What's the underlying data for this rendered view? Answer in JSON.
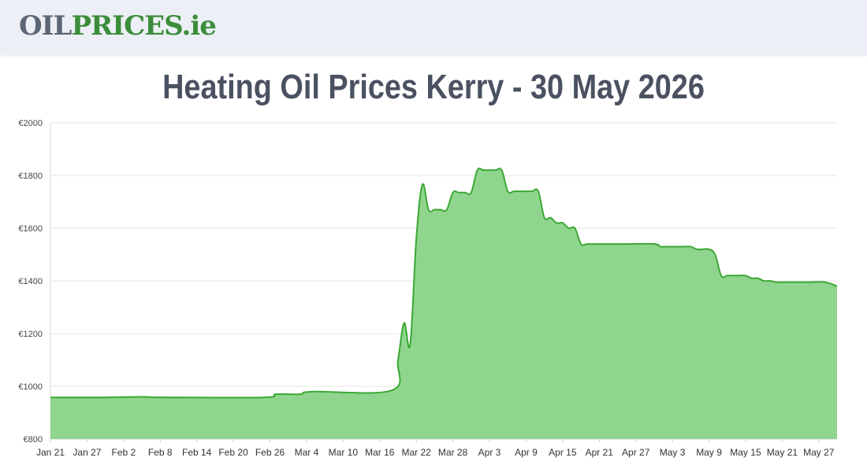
{
  "header": {
    "logo_oil": "OIL",
    "logo_prices": "PRICES",
    "logo_ie": ".ie",
    "bg_color": "#eceff5"
  },
  "page": {
    "title": "Heating Oil Prices Kerry - 30 May 2026"
  },
  "chart_data": {
    "type": "area",
    "title": "Heating Oil Prices Kerry - 30 May 2026",
    "xlabel": "",
    "ylabel": "",
    "ylim": [
      800,
      2000
    ],
    "yticks": [
      800,
      1000,
      1200,
      1400,
      1600,
      1800,
      2000
    ],
    "ytick_labels": [
      "€800",
      "€1000",
      "€1200",
      "€1400",
      "€1600",
      "€1800",
      "€2000"
    ],
    "xticks": [
      "Jan 21",
      "Jan 27",
      "Feb 2",
      "Feb 8",
      "Feb 14",
      "Feb 20",
      "Feb 26",
      "Mar 4",
      "Mar 10",
      "Mar 16",
      "Mar 22",
      "Mar 28",
      "Apr 3",
      "Apr 9",
      "Apr 15",
      "Apr 21",
      "Apr 27",
      "May 3",
      "May 9",
      "May 15",
      "May 21",
      "May 27"
    ],
    "grid": true,
    "legend": "none",
    "line_color": "#3aa835",
    "fill_color": "#90d58e",
    "series": [
      {
        "x": [
          "2026-01-21",
          "2026-01-30",
          "2026-02-05",
          "2026-02-09",
          "2026-02-25",
          "2026-02-27",
          "2026-03-03",
          "2026-03-05",
          "2026-03-18",
          "2026-03-19",
          "2026-03-20",
          "2026-03-21",
          "2026-03-22",
          "2026-03-23",
          "2026-03-24",
          "2026-03-25",
          "2026-03-26",
          "2026-03-27",
          "2026-03-28",
          "2026-03-29",
          "2026-03-30",
          "2026-03-31",
          "2026-04-01",
          "2026-04-02",
          "2026-04-03",
          "2026-04-04",
          "2026-04-05",
          "2026-04-06",
          "2026-04-07",
          "2026-04-08",
          "2026-04-09",
          "2026-04-10",
          "2026-04-11",
          "2026-04-12",
          "2026-04-13",
          "2026-04-14",
          "2026-04-15",
          "2026-04-16",
          "2026-04-17",
          "2026-04-18",
          "2026-04-19",
          "2026-04-20",
          "2026-04-21",
          "2026-04-22",
          "2026-04-25",
          "2026-04-30",
          "2026-05-01",
          "2026-05-02",
          "2026-05-05",
          "2026-05-06",
          "2026-05-07",
          "2026-05-08",
          "2026-05-09",
          "2026-05-10",
          "2026-05-11",
          "2026-05-12",
          "2026-05-13",
          "2026-05-14",
          "2026-05-15",
          "2026-05-16",
          "2026-05-17",
          "2026-05-18",
          "2026-05-19",
          "2026-05-20",
          "2026-05-21",
          "2026-05-22",
          "2026-05-25",
          "2026-05-28",
          "2026-05-30"
        ],
        "y": [
          958,
          958,
          960,
          958,
          958,
          970,
          970,
          980,
          985,
          1100,
          1240,
          1160,
          1560,
          1765,
          1670,
          1670,
          1670,
          1670,
          1735,
          1735,
          1735,
          1735,
          1820,
          1820,
          1820,
          1820,
          1820,
          1740,
          1740,
          1740,
          1740,
          1740,
          1740,
          1640,
          1640,
          1620,
          1620,
          1600,
          1600,
          1540,
          1540,
          1540,
          1540,
          1540,
          1540,
          1540,
          1530,
          1530,
          1530,
          1530,
          1520,
          1520,
          1520,
          1500,
          1420,
          1420,
          1420,
          1420,
          1420,
          1410,
          1410,
          1400,
          1400,
          1395,
          1395,
          1395,
          1395,
          1395,
          1380
        ]
      }
    ]
  }
}
